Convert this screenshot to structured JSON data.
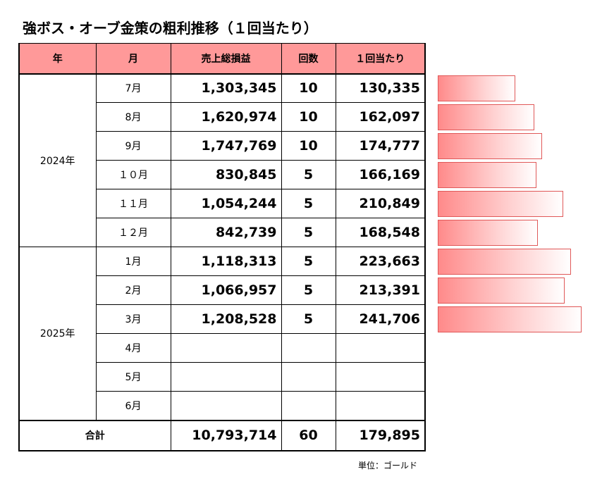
{
  "title": "強ボス・オーブ金策の粗利推移（１回当たり）",
  "headers": {
    "year": "年",
    "month": "月",
    "gross": "売上総損益",
    "count": "回数",
    "per": "１回当たり"
  },
  "years": [
    "2024年",
    "2025年"
  ],
  "rows": [
    {
      "month": "7月",
      "gross": "1,303,345",
      "count": "10",
      "per": "130,335",
      "per_value": 130335
    },
    {
      "month": "8月",
      "gross": "1,620,974",
      "count": "10",
      "per": "162,097",
      "per_value": 162097
    },
    {
      "month": "9月",
      "gross": "1,747,769",
      "count": "10",
      "per": "174,777",
      "per_value": 174777
    },
    {
      "month": "１０月",
      "gross": "830,845",
      "count": "5",
      "per": "166,169",
      "per_value": 166169
    },
    {
      "month": "１１月",
      "gross": "1,054,244",
      "count": "5",
      "per": "210,849",
      "per_value": 210849
    },
    {
      "month": "１２月",
      "gross": "842,739",
      "count": "5",
      "per": "168,548",
      "per_value": 168548
    },
    {
      "month": "1月",
      "gross": "1,118,313",
      "count": "5",
      "per": "223,663",
      "per_value": 223663
    },
    {
      "month": "2月",
      "gross": "1,066,957",
      "count": "5",
      "per": "213,391",
      "per_value": 213391
    },
    {
      "month": "3月",
      "gross": "1,208,528",
      "count": "5",
      "per": "241,706",
      "per_value": 241706
    },
    {
      "month": "4月",
      "gross": "",
      "count": "",
      "per": ""
    },
    {
      "month": "5月",
      "gross": "",
      "count": "",
      "per": ""
    },
    {
      "month": "6月",
      "gross": "",
      "count": "",
      "per": ""
    }
  ],
  "total": {
    "label": "合計",
    "gross": "10,793,714",
    "count": "60",
    "per": "179,895"
  },
  "unit": "単位：ゴールド",
  "colors": {
    "header_bg": "#ff9999",
    "bar_fill": "#ff8a8a",
    "bar_border": "#e05858"
  }
}
